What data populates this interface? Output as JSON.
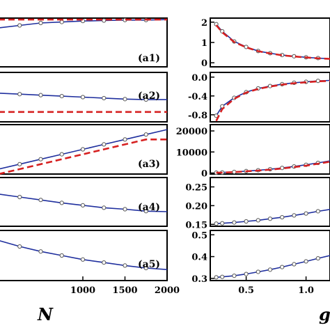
{
  "chart_data": [
    {
      "id": "a1",
      "type": "line",
      "label": "(a1)",
      "xlim": [
        0,
        2000
      ],
      "ylim": [
        0,
        1
      ],
      "x": [
        0,
        250,
        500,
        750,
        1000,
        1250,
        1500,
        1750,
        2000
      ],
      "series": [
        {
          "style": "solid-blue-markers",
          "values": [
            0.8,
            0.85,
            0.9,
            0.92,
            0.94,
            0.95,
            0.96,
            0.96,
            0.97
          ]
        },
        {
          "style": "dashed-red",
          "values": [
            0.97,
            0.97,
            0.97,
            0.97,
            0.97,
            0.97,
            0.97,
            0.97,
            0.97
          ]
        }
      ]
    },
    {
      "id": "a2",
      "type": "line",
      "label": "(a2)",
      "xlim": [
        0,
        2000
      ],
      "ylim": [
        0,
        1
      ],
      "x": [
        0,
        250,
        500,
        750,
        1000,
        1250,
        1500,
        1750,
        2000
      ],
      "series": [
        {
          "style": "solid-blue-markers",
          "values": [
            0.58,
            0.56,
            0.54,
            0.52,
            0.5,
            0.48,
            0.46,
            0.45,
            0.45
          ]
        },
        {
          "style": "dashed-red",
          "values": [
            0.2,
            0.2,
            0.2,
            0.2,
            0.2,
            0.2,
            0.2,
            0.2,
            0.2
          ]
        }
      ]
    },
    {
      "id": "a3",
      "type": "line",
      "label": "(a3)",
      "xlim": [
        0,
        2000
      ],
      "ylim": [
        0,
        1
      ],
      "x": [
        0,
        250,
        500,
        750,
        1000,
        1250,
        1500,
        1750,
        2000
      ],
      "series": [
        {
          "style": "solid-blue-markers",
          "values": [
            0.1,
            0.2,
            0.3,
            0.4,
            0.5,
            0.6,
            0.7,
            0.8,
            0.9
          ]
        },
        {
          "style": "dashed-red",
          "values": [
            0.0,
            0.1,
            0.2,
            0.3,
            0.4,
            0.5,
            0.6,
            0.7,
            0.7
          ]
        }
      ]
    },
    {
      "id": "a4",
      "type": "line",
      "label": "(a4)",
      "xlim": [
        0,
        2000
      ],
      "ylim": [
        0,
        1
      ],
      "x": [
        0,
        250,
        500,
        750,
        1000,
        1250,
        1500,
        1750,
        2000
      ],
      "series": [
        {
          "style": "solid-blue-markers",
          "values": [
            0.66,
            0.6,
            0.54,
            0.48,
            0.43,
            0.38,
            0.35,
            0.31,
            0.3
          ]
        }
      ]
    },
    {
      "id": "a5",
      "type": "line",
      "label": "(a5)",
      "xlim": [
        0,
        2000
      ],
      "ylim": [
        0,
        1
      ],
      "x": [
        0,
        250,
        500,
        750,
        1000,
        1250,
        1500,
        1750,
        2000
      ],
      "series": [
        {
          "style": "solid-blue-markers",
          "values": [
            0.8,
            0.68,
            0.58,
            0.5,
            0.42,
            0.36,
            0.3,
            0.25,
            0.22
          ]
        }
      ]
    },
    {
      "id": "b1",
      "type": "line",
      "xlim": [
        0.2,
        1.2
      ],
      "ylim": [
        -0.2,
        2.2
      ],
      "yticks": [
        0,
        1,
        2
      ],
      "ytick_labels": [
        "0",
        "1",
        "2"
      ],
      "x": [
        0.25,
        0.3,
        0.4,
        0.5,
        0.6,
        0.7,
        0.8,
        0.9,
        1.0,
        1.1,
        1.2
      ],
      "series": [
        {
          "style": "solid-blue-markers",
          "values": [
            1.9,
            1.55,
            1.05,
            0.78,
            0.58,
            0.47,
            0.38,
            0.32,
            0.27,
            0.23,
            0.2
          ]
        },
        {
          "style": "dashed-red",
          "values": [
            1.85,
            1.5,
            1.02,
            0.76,
            0.57,
            0.46,
            0.37,
            0.31,
            0.26,
            0.22,
            0.19
          ]
        }
      ]
    },
    {
      "id": "b2",
      "type": "line",
      "xlim": [
        0.2,
        1.2
      ],
      "ylim": [
        -0.95,
        0.1
      ],
      "yticks": [
        0,
        -0.4,
        -0.8
      ],
      "ytick_labels": [
        "0.0",
        "-0.4",
        "-0.8"
      ],
      "x": [
        0.25,
        0.3,
        0.4,
        0.5,
        0.6,
        0.7,
        0.8,
        0.9,
        1.0,
        1.1,
        1.2
      ],
      "series": [
        {
          "style": "solid-blue-markers",
          "values": [
            -0.82,
            -0.62,
            -0.44,
            -0.32,
            -0.24,
            -0.19,
            -0.15,
            -0.12,
            -0.1,
            -0.08,
            -0.07
          ]
        },
        {
          "style": "dashed-red",
          "values": [
            -0.93,
            -0.68,
            -0.46,
            -0.33,
            -0.25,
            -0.2,
            -0.16,
            -0.13,
            -0.11,
            -0.09,
            -0.08
          ]
        }
      ]
    },
    {
      "id": "b3",
      "type": "line",
      "xlim": [
        0.2,
        1.2
      ],
      "ylim": [
        -500,
        23000
      ],
      "yticks": [
        0,
        10000,
        20000
      ],
      "ytick_labels": [
        "0",
        "10000",
        "20000"
      ],
      "x": [
        0.25,
        0.3,
        0.4,
        0.5,
        0.6,
        0.7,
        0.8,
        0.9,
        1.0,
        1.1,
        1.2
      ],
      "series": [
        {
          "style": "solid-blue-markers",
          "values": [
            150,
            250,
            500,
            900,
            1300,
            1800,
            2400,
            3100,
            3900,
            4800,
            5800
          ]
        },
        {
          "style": "dashed-red",
          "values": [
            120,
            200,
            420,
            780,
            1150,
            1600,
            2150,
            2800,
            3500,
            4400,
            5400
          ]
        }
      ]
    },
    {
      "id": "b4",
      "type": "line",
      "xlim": [
        0.2,
        1.2
      ],
      "ylim": [
        0.145,
        0.275
      ],
      "yticks": [
        0.15,
        0.2,
        0.25
      ],
      "ytick_labels": [
        "0.15",
        "0.20",
        "0.25"
      ],
      "x": [
        0.25,
        0.3,
        0.4,
        0.5,
        0.6,
        0.7,
        0.8,
        0.9,
        1.0,
        1.1,
        1.2
      ],
      "series": [
        {
          "style": "solid-blue-markers",
          "values": [
            0.152,
            0.153,
            0.155,
            0.158,
            0.161,
            0.165,
            0.169,
            0.174,
            0.179,
            0.185,
            0.19
          ]
        }
      ]
    },
    {
      "id": "b5",
      "type": "line",
      "xlim": [
        0.2,
        1.2
      ],
      "ylim": [
        0.29,
        0.52
      ],
      "yticks": [
        0.3,
        0.4,
        0.5
      ],
      "ytick_labels": [
        "0.3",
        "0.4",
        "0.5"
      ],
      "x": [
        0.25,
        0.3,
        0.4,
        0.5,
        0.6,
        0.7,
        0.8,
        0.9,
        1.0,
        1.1,
        1.2
      ],
      "series": [
        {
          "style": "solid-blue-markers",
          "values": [
            0.305,
            0.307,
            0.312,
            0.32,
            0.33,
            0.34,
            0.352,
            0.365,
            0.378,
            0.392,
            0.405
          ]
        }
      ]
    }
  ],
  "bottom_left_xticks": [
    {
      "v": 1000,
      "t": "1000"
    },
    {
      "v": 1500,
      "t": "1500"
    },
    {
      "v": 2000,
      "t": "2000"
    }
  ],
  "bottom_right_xticks": [
    {
      "v": 0.5,
      "t": "0.5"
    },
    {
      "v": 1.0,
      "t": "1.0"
    }
  ],
  "axis_labels": {
    "left_x": "N",
    "right_x": "g"
  },
  "colors": {
    "solid": "#1f2f9e",
    "dashed": "#d62020",
    "frame": "#000000"
  }
}
